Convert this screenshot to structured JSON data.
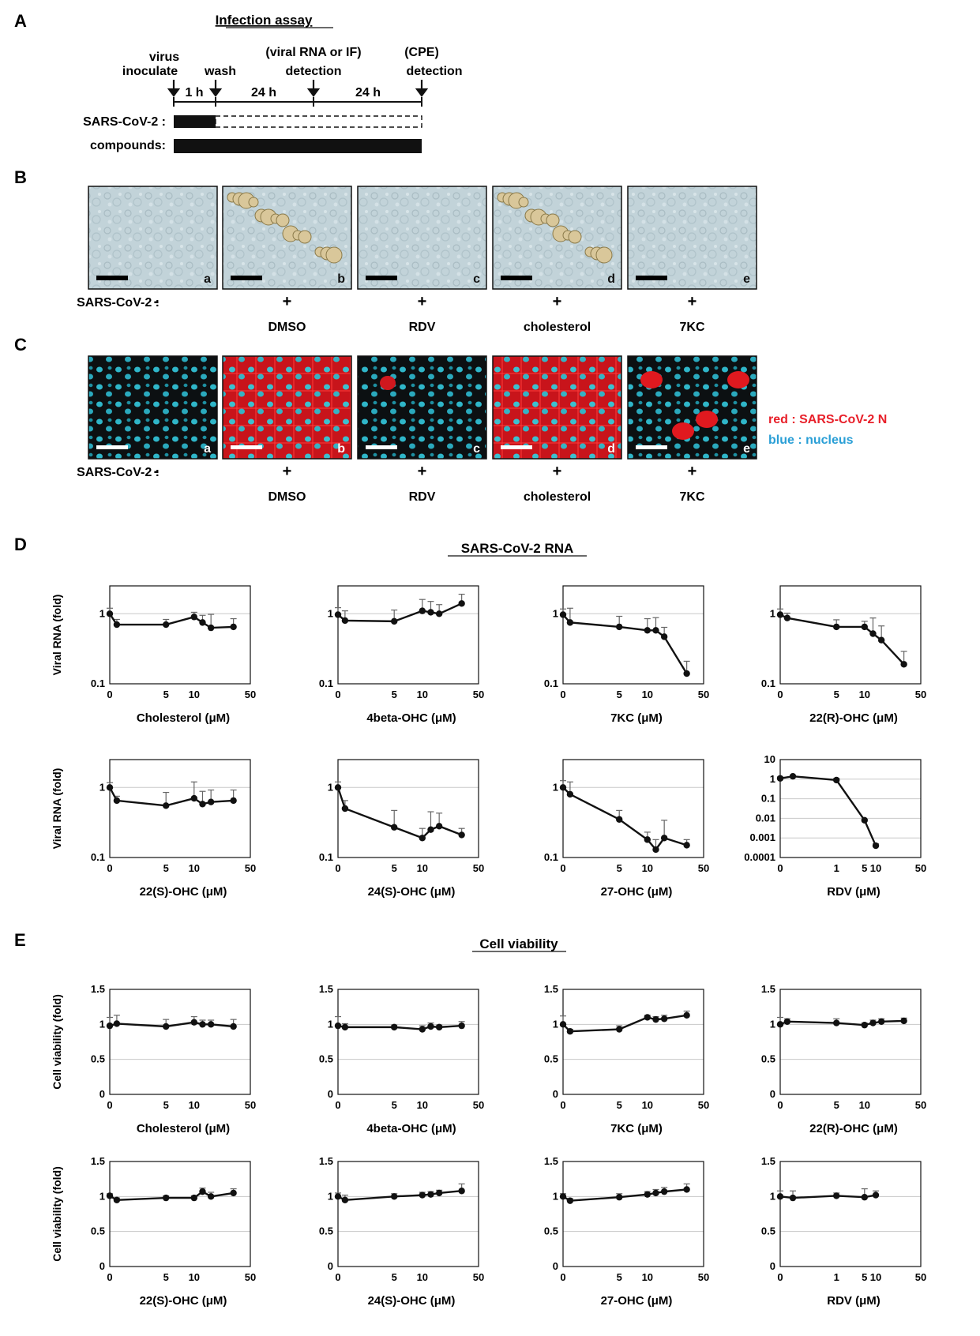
{
  "panels": [
    "A",
    "B",
    "C",
    "D",
    "E"
  ],
  "assay": {
    "title": "Infection assay",
    "steps": [
      {
        "label": [
          "virus",
          "inoculate"
        ]
      },
      {
        "label": [
          "wash"
        ]
      },
      {
        "label": [
          "(viral RNA or IF)",
          "detection"
        ]
      },
      {
        "label": [
          "(CPE)",
          "detection"
        ]
      }
    ],
    "intervals": [
      "1 h",
      "24 h",
      "24 h"
    ],
    "rows": [
      "SARS-CoV-2 :",
      "compounds:"
    ]
  },
  "micro": {
    "row_label": "SARS-CoV-2 :",
    "treatments": [
      {
        "letter": "a",
        "sign": "-",
        "name": ""
      },
      {
        "letter": "b",
        "sign": "+",
        "name": "DMSO"
      },
      {
        "letter": "c",
        "sign": "+",
        "name": "RDV"
      },
      {
        "letter": "d",
        "sign": "+",
        "name": "cholesterol"
      },
      {
        "letter": "e",
        "sign": "+",
        "name": "7KC"
      }
    ],
    "legend": [
      {
        "text": "red  : SARS-CoV-2 N",
        "color": "#e8202a"
      },
      {
        "text": "blue : nucleus",
        "color": "#2a9fd6"
      }
    ]
  },
  "rna": {
    "title": "SARS-CoV-2 RNA",
    "ylabel": "Viral RNA (fold)",
    "x_ticks": [
      0,
      5,
      10,
      50
    ],
    "y_ticks": [
      1,
      0.1
    ]
  },
  "viab": {
    "title": "Cell viability",
    "ylabel": "Cell viability (fold)",
    "x_ticks": [
      0,
      5,
      10,
      50
    ],
    "y_ticks": [
      1.5,
      1,
      0.5,
      0
    ]
  },
  "chart_data": [
    {
      "panel": "D",
      "type": "line",
      "xlabel": "Cholesterol (μM)",
      "yscale": "log",
      "ylim": [
        0.1,
        2.5
      ],
      "xlim": [
        0,
        50
      ],
      "x": [
        0,
        1,
        5,
        10,
        12,
        15,
        30
      ],
      "y": [
        1.0,
        0.7,
        0.7,
        0.9,
        0.75,
        0.63,
        0.65
      ],
      "err": [
        0.2,
        0.13,
        0.13,
        0.15,
        0.2,
        0.35,
        0.2
      ]
    },
    {
      "panel": "D",
      "type": "line",
      "xlabel": "4beta-OHC (μM)",
      "yscale": "log",
      "ylim": [
        0.1,
        2.5
      ],
      "xlim": [
        0,
        50
      ],
      "x": [
        0,
        1,
        5,
        10,
        12,
        15,
        30
      ],
      "y": [
        0.97,
        0.8,
        0.78,
        1.1,
        1.05,
        1.0,
        1.4
      ],
      "err": [
        0.25,
        0.3,
        0.35,
        0.5,
        0.45,
        0.35,
        0.5
      ]
    },
    {
      "panel": "D",
      "type": "line",
      "xlabel": "7KC (μM)",
      "yscale": "log",
      "ylim": [
        0.1,
        2.5
      ],
      "xlim": [
        0,
        50
      ],
      "x": [
        0,
        1,
        5,
        10,
        12,
        15,
        30
      ],
      "y": [
        0.97,
        0.75,
        0.65,
        0.58,
        0.58,
        0.47,
        0.14
      ],
      "err": [
        0.2,
        0.45,
        0.27,
        0.27,
        0.3,
        0.17,
        0.07
      ]
    },
    {
      "panel": "D",
      "type": "line",
      "xlabel": "22(R)-OHC (μM)",
      "yscale": "log",
      "ylim": [
        0.1,
        2.5
      ],
      "xlim": [
        0,
        50
      ],
      "x": [
        0,
        1,
        5,
        10,
        12,
        15,
        30
      ],
      "y": [
        0.97,
        0.87,
        0.65,
        0.65,
        0.52,
        0.42,
        0.19
      ],
      "err": [
        0.2,
        0.15,
        0.17,
        0.13,
        0.35,
        0.25,
        0.1
      ]
    },
    {
      "panel": "D",
      "type": "line",
      "xlabel": "22(S)-OHC (μM)",
      "yscale": "log",
      "ylim": [
        0.1,
        2.5
      ],
      "xlim": [
        0,
        50
      ],
      "x": [
        0,
        1,
        5,
        10,
        12,
        15,
        30
      ],
      "y": [
        1.0,
        0.65,
        0.55,
        0.7,
        0.58,
        0.62,
        0.65
      ],
      "err": [
        0.17,
        0.1,
        0.3,
        0.5,
        0.3,
        0.3,
        0.27
      ]
    },
    {
      "panel": "D",
      "type": "line",
      "xlabel": "24(S)-OHC (μM)",
      "yscale": "log",
      "ylim": [
        0.1,
        2.5
      ],
      "xlim": [
        0,
        50
      ],
      "x": [
        0,
        1,
        5,
        10,
        12,
        15,
        30
      ],
      "y": [
        1.0,
        0.5,
        0.27,
        0.19,
        0.25,
        0.28,
        0.21
      ],
      "err": [
        0.2,
        0.15,
        0.2,
        0.07,
        0.2,
        0.15,
        0.05
      ]
    },
    {
      "panel": "D",
      "type": "line",
      "xlabel": "27-OHC (μM)",
      "yscale": "log",
      "ylim": [
        0.1,
        2.5
      ],
      "xlim": [
        0,
        50
      ],
      "x": [
        0,
        1,
        5,
        10,
        12,
        15,
        30
      ],
      "y": [
        1.0,
        0.8,
        0.35,
        0.18,
        0.13,
        0.19,
        0.15
      ],
      "err": [
        0.25,
        0.4,
        0.12,
        0.05,
        0.05,
        0.15,
        0.03
      ]
    },
    {
      "panel": "D",
      "type": "line",
      "xlabel": "RDV (μM)",
      "yscale": "log",
      "ylim": [
        0.0001,
        10
      ],
      "xlim": [
        0,
        50
      ],
      "y_ticks": [
        10,
        1,
        0.1,
        0.01,
        0.001,
        0.0001
      ],
      "x_ticks": [
        0,
        1,
        5,
        10,
        50
      ],
      "x": [
        0,
        0.3,
        1,
        5,
        10
      ],
      "y": [
        1.1,
        1.4,
        0.9,
        0.008,
        0.0004
      ],
      "err": [
        0.2,
        0.15,
        0.2,
        0.001,
        0.0001
      ]
    },
    {
      "panel": "E",
      "type": "line",
      "xlabel": "Cholesterol (μM)",
      "ylim": [
        0,
        1.5
      ],
      "xlim": [
        0,
        50
      ],
      "x": [
        0,
        1,
        5,
        10,
        12,
        15,
        30
      ],
      "y": [
        0.98,
        1.01,
        0.97,
        1.03,
        1.0,
        1.0,
        0.97
      ],
      "err": [
        0.12,
        0.12,
        0.1,
        0.08,
        0.06,
        0.06,
        0.1
      ]
    },
    {
      "panel": "E",
      "type": "line",
      "xlabel": "4beta-OHC (μM)",
      "ylim": [
        0,
        1.5
      ],
      "xlim": [
        0,
        50
      ],
      "x": [
        0,
        1,
        5,
        10,
        12,
        15,
        30
      ],
      "y": [
        0.98,
        0.96,
        0.96,
        0.93,
        0.97,
        0.96,
        0.98
      ],
      "err": [
        0.13,
        0.05,
        0.03,
        0.05,
        0.05,
        0.03,
        0.06
      ]
    },
    {
      "panel": "E",
      "type": "line",
      "xlabel": "7KC (μM)",
      "ylim": [
        0,
        1.5
      ],
      "xlim": [
        0,
        50
      ],
      "x": [
        0,
        1,
        5,
        10,
        12,
        15,
        30
      ],
      "y": [
        1.0,
        0.9,
        0.93,
        1.1,
        1.07,
        1.08,
        1.13
      ],
      "err": [
        0.12,
        0.03,
        0.05,
        0.03,
        0.04,
        0.05,
        0.06
      ]
    },
    {
      "panel": "E",
      "type": "line",
      "xlabel": "22(R)-OHC (μM)",
      "ylim": [
        0,
        1.5
      ],
      "xlim": [
        0,
        50
      ],
      "x": [
        0,
        1,
        5,
        10,
        12,
        15,
        30
      ],
      "y": [
        1.0,
        1.04,
        1.02,
        0.99,
        1.02,
        1.04,
        1.05
      ],
      "err": [
        0.1,
        0.04,
        0.06,
        0.03,
        0.04,
        0.04,
        0.04
      ]
    },
    {
      "panel": "E",
      "type": "line",
      "xlabel": "22(S)-OHC (μM)",
      "ylim": [
        0,
        1.5
      ],
      "xlim": [
        0,
        50
      ],
      "x": [
        0,
        1,
        5,
        10,
        12,
        15,
        30
      ],
      "y": [
        1.01,
        0.95,
        0.98,
        0.98,
        1.07,
        1.0,
        1.05
      ],
      "err": [
        0.03,
        0.03,
        0.03,
        0.03,
        0.05,
        0.06,
        0.06
      ]
    },
    {
      "panel": "E",
      "type": "line",
      "xlabel": "24(S)-OHC (μM)",
      "ylim": [
        0,
        1.5
      ],
      "xlim": [
        0,
        50
      ],
      "x": [
        0,
        1,
        5,
        10,
        12,
        15,
        30
      ],
      "y": [
        1.0,
        0.95,
        1.0,
        1.02,
        1.03,
        1.05,
        1.08
      ],
      "err": [
        0.05,
        0.07,
        0.04,
        0.04,
        0.04,
        0.04,
        0.1
      ]
    },
    {
      "panel": "E",
      "type": "line",
      "xlabel": "27-OHC (μM)",
      "ylim": [
        0,
        1.5
      ],
      "xlim": [
        0,
        50
      ],
      "x": [
        0,
        1,
        5,
        10,
        12,
        15,
        30
      ],
      "y": [
        1.0,
        0.94,
        0.99,
        1.03,
        1.05,
        1.07,
        1.1
      ],
      "err": [
        0.04,
        0.03,
        0.05,
        0.04,
        0.05,
        0.06,
        0.08
      ]
    },
    {
      "panel": "E",
      "type": "line",
      "xlabel": "RDV (μM)",
      "ylim": [
        0,
        1.5
      ],
      "xlim": [
        0,
        50
      ],
      "x_ticks": [
        0,
        1,
        5,
        10,
        50
      ],
      "x": [
        0,
        0.3,
        1,
        5,
        10
      ],
      "y": [
        1.0,
        0.98,
        1.01,
        0.99,
        1.02
      ],
      "err": [
        0.08,
        0.1,
        0.04,
        0.12,
        0.06
      ]
    }
  ]
}
